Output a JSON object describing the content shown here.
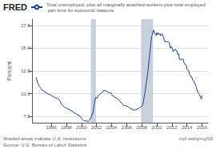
{
  "chart_data": {
    "type": "line",
    "ylabel": "Percent",
    "annotations": [
      "FRED",
      "Shaded areas indicate U.S. recessions",
      "Source: U.S. Bureau of Labor Statistics",
      "myf.red/g/myG5"
    ],
    "legend": "top",
    "grid": true,
    "xlim": [
      1993.5,
      2016.8
    ],
    "xticks": [
      1996,
      1998,
      2000,
      2002,
      2004,
      2006,
      2008,
      2010,
      2012,
      2014,
      2016
    ],
    "ylim": [
      6.8,
      18.2
    ],
    "yticks": [
      7.5,
      {
        "value": 10.0,
        "label": "10.0"
      },
      12.5,
      {
        "value": 15.0,
        "label": "15.0"
      },
      17.5
    ],
    "recession_bands": {
      "color": "#c8d0dc",
      "ranges": [
        [
          2001.25,
          2001.92
        ],
        [
          2007.92,
          2009.5
        ]
      ]
    },
    "x": [
      1994.0,
      1994.083,
      1994.167,
      1994.25,
      1994.333,
      1994.417,
      1994.5,
      1994.583,
      1994.667,
      1994.75,
      1994.833,
      1994.917,
      1995.0,
      1995.083,
      1995.167,
      1995.25,
      1995.333,
      1995.417,
      1995.5,
      1995.583,
      1995.667,
      1995.75,
      1995.833,
      1995.917,
      1996.0,
      1996.083,
      1996.167,
      1996.25,
      1996.333,
      1996.417,
      1996.5,
      1996.583,
      1996.667,
      1996.75,
      1996.833,
      1996.917,
      1997.0,
      1997.083,
      1997.167,
      1997.25,
      1997.333,
      1997.417,
      1997.5,
      1997.583,
      1997.667,
      1997.75,
      1997.833,
      1997.917,
      1998.0,
      1998.083,
      1998.167,
      1998.25,
      1998.333,
      1998.417,
      1998.5,
      1998.583,
      1998.667,
      1998.75,
      1998.833,
      1998.917,
      1999.0,
      1999.083,
      1999.167,
      1999.25,
      1999.333,
      1999.417,
      1999.5,
      1999.583,
      1999.667,
      1999.75,
      1999.833,
      1999.917,
      2000.0,
      2000.083,
      2000.167,
      2000.25,
      2000.333,
      2000.417,
      2000.5,
      2000.583,
      2000.667,
      2000.75,
      2000.833,
      2000.917,
      2001.0,
      2001.083,
      2001.167,
      2001.25,
      2001.333,
      2001.417,
      2001.5,
      2001.583,
      2001.667,
      2001.75,
      2001.833,
      2001.917,
      2002.0,
      2002.083,
      2002.167,
      2002.25,
      2002.333,
      2002.417,
      2002.5,
      2002.583,
      2002.667,
      2002.75,
      2002.833,
      2002.917,
      2003.0,
      2003.083,
      2003.167,
      2003.25,
      2003.333,
      2003.417,
      2003.5,
      2003.583,
      2003.667,
      2003.75,
      2003.833,
      2003.917,
      2004.0,
      2004.083,
      2004.167,
      2004.25,
      2004.333,
      2004.417,
      2004.5,
      2004.583,
      2004.667,
      2004.75,
      2004.833,
      2004.917,
      2005.0,
      2005.083,
      2005.167,
      2005.25,
      2005.333,
      2005.417,
      2005.5,
      2005.583,
      2005.667,
      2005.75,
      2005.833,
      2005.917,
      2006.0,
      2006.083,
      2006.167,
      2006.25,
      2006.333,
      2006.417,
      2006.5,
      2006.583,
      2006.667,
      2006.75,
      2006.833,
      2006.917,
      2007.0,
      2007.083,
      2007.167,
      2007.25,
      2007.333,
      2007.417,
      2007.5,
      2007.583,
      2007.667,
      2007.75,
      2007.833,
      2007.917,
      2008.0,
      2008.083,
      2008.167,
      2008.25,
      2008.333,
      2008.417,
      2008.5,
      2008.583,
      2008.667,
      2008.75,
      2008.833,
      2008.917,
      2009.0,
      2009.083,
      2009.167,
      2009.25,
      2009.333,
      2009.417,
      2009.5,
      2009.583,
      2009.667,
      2009.75,
      2009.833,
      2009.917,
      2010.0,
      2010.083,
      2010.167,
      2010.25,
      2010.333,
      2010.417,
      2010.5,
      2010.583,
      2010.667,
      2010.75,
      2010.833,
      2010.917,
      2011.0,
      2011.083,
      2011.167,
      2011.25,
      2011.333,
      2011.417,
      2011.5,
      2011.583,
      2011.667,
      2011.75,
      2011.833,
      2011.917,
      2012.0,
      2012.083,
      2012.167,
      2012.25,
      2012.333,
      2012.417,
      2012.5,
      2012.583,
      2012.667,
      2012.75,
      2012.833,
      2012.917,
      2013.0,
      2013.083,
      2013.167,
      2013.25,
      2013.333,
      2013.417,
      2013.5,
      2013.583,
      2013.667,
      2013.75,
      2013.833,
      2013.917,
      2014.0,
      2014.083,
      2014.167,
      2014.25,
      2014.333,
      2014.417,
      2014.5,
      2014.583,
      2014.667,
      2014.75,
      2014.833,
      2014.917,
      2015.0,
      2015.083,
      2015.167,
      2015.25,
      2015.333,
      2015.417,
      2015.5,
      2015.583,
      2015.667,
      2015.75,
      2015.833,
      2015.917,
      2016.0
    ],
    "series": [
      {
        "name": "Total unemployed, plus all marginally attached workers plus total employed part time for economic reasons",
        "color": "#1a3f8f",
        "values": [
          11.8,
          11.5,
          11.2,
          11.1,
          10.9,
          10.8,
          10.7,
          10.6,
          10.5,
          10.4,
          10.4,
          10.3,
          10.3,
          10.2,
          10.1,
          10.2,
          10.1,
          10.0,
          10.0,
          10.0,
          9.9,
          9.9,
          9.9,
          9.8,
          9.8,
          9.8,
          9.7,
          9.7,
          9.6,
          9.6,
          9.6,
          9.5,
          9.5,
          9.5,
          9.5,
          9.4,
          9.4,
          9.3,
          9.2,
          9.0,
          8.9,
          8.8,
          8.7,
          8.6,
          8.6,
          8.5,
          8.5,
          8.4,
          8.4,
          8.4,
          8.3,
          8.3,
          8.3,
          8.2,
          8.2,
          8.2,
          8.1,
          8.1,
          8.0,
          8.0,
          7.9,
          7.9,
          7.8,
          7.8,
          7.8,
          7.7,
          7.6,
          7.7,
          7.6,
          7.5,
          7.5,
          7.4,
          7.3,
          7.2,
          7.1,
          7.1,
          7.0,
          7.0,
          7.0,
          7.0,
          7.0,
          7.0,
          6.9,
          6.9,
          7.0,
          7.1,
          7.3,
          7.3,
          7.5,
          7.8,
          7.8,
          8.2,
          8.7,
          9.1,
          9.4,
          9.6,
          9.5,
          9.5,
          9.7,
          9.8,
          9.8,
          9.9,
          10.0,
          10.0,
          10.1,
          10.2,
          10.2,
          10.3,
          10.4,
          10.3,
          10.3,
          10.3,
          10.3,
          10.2,
          10.2,
          10.1,
          10.1,
          10.1,
          10.1,
          10.1,
          9.9,
          9.8,
          9.8,
          9.7,
          9.7,
          9.6,
          9.6,
          9.5,
          9.5,
          9.5,
          9.4,
          9.3,
          9.3,
          9.2,
          9.1,
          9.0,
          9.0,
          8.9,
          8.8,
          8.7,
          8.7,
          8.7,
          8.7,
          8.7,
          8.6,
          8.6,
          8.6,
          8.5,
          8.5,
          8.4,
          8.4,
          8.3,
          8.3,
          8.3,
          8.2,
          8.2,
          8.2,
          8.2,
          8.2,
          8.2,
          8.3,
          8.3,
          8.3,
          8.4,
          8.4,
          8.5,
          8.5,
          8.6,
          8.6,
          8.7,
          8.9,
          9.2,
          9.7,
          10.0,
          10.5,
          11.0,
          11.5,
          12.0,
          12.5,
          13.2,
          13.9,
          14.5,
          15.1,
          15.8,
          16.3,
          16.5,
          16.8,
          17.0,
          16.8,
          16.6,
          16.5,
          16.4,
          16.7,
          16.5,
          16.7,
          16.6,
          16.5,
          16.6,
          16.4,
          16.4,
          16.6,
          16.5,
          16.3,
          16.2,
          15.8,
          15.7,
          15.8,
          15.7,
          15.7,
          15.7,
          15.7,
          15.7,
          15.6,
          15.2,
          15.0,
          15.2,
          15.1,
          14.9,
          14.6,
          14.8,
          14.8,
          14.8,
          14.9,
          14.7,
          14.7,
          14.4,
          14.3,
          14.4,
          13.8,
          13.8,
          13.7,
          13.8,
          13.8,
          13.8,
          13.8,
          13.5,
          13.3,
          13.2,
          13.2,
          13.1,
          12.7,
          12.6,
          12.6,
          12.5,
          12.1,
          12.0,
          12.0,
          11.8,
          11.8,
          11.5,
          11.4,
          11.4,
          11.2,
          11.1,
          10.9,
          10.7,
          10.4,
          10.3,
          10.1,
          10.0,
          9.9,
          9.7,
          9.6,
          9.4,
          9.8
        ]
      }
    ]
  }
}
